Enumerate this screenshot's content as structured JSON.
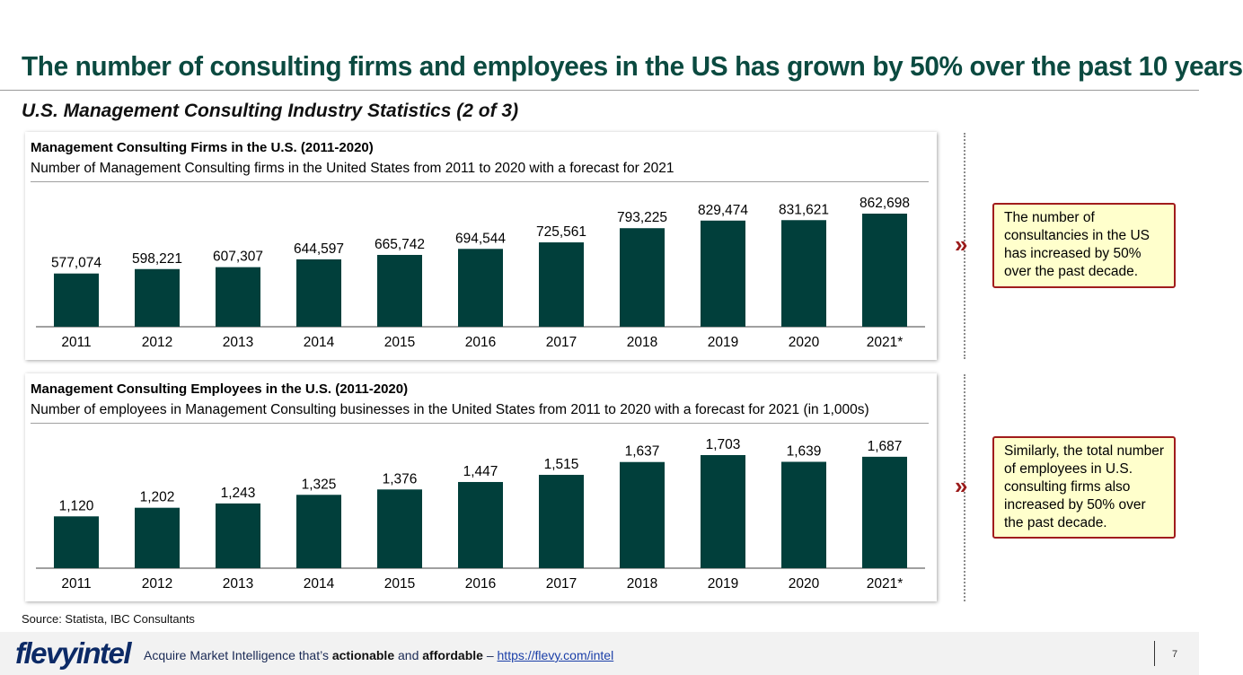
{
  "title": "The number of consulting firms and employees in the US has grown by 50% over the past 10 years",
  "subtitle": "U.S. Management Consulting Industry Statistics (2 of 3)",
  "colors": {
    "bar": "#013f3b",
    "title": "#0b4a40",
    "callout_bg": "#ffffcc",
    "callout_border": "#a11c1c",
    "chevron": "#9b1b1b"
  },
  "chart_data": [
    {
      "type": "bar",
      "title": "Management Consulting Firms in the U.S. (2011-2020)",
      "subtitle": "Number of Management Consulting firms in the United States from 2011 to 2020 with a forecast for 2021",
      "categories": [
        "2011",
        "2012",
        "2013",
        "2014",
        "2015",
        "2016",
        "2017",
        "2018",
        "2019",
        "2020",
        "2021*"
      ],
      "values": [
        577074,
        598221,
        607307,
        644597,
        665742,
        694544,
        725561,
        793225,
        829474,
        831621,
        862698
      ],
      "value_labels": [
        "577,074",
        "598,221",
        "607,307",
        "644,597",
        "665,742",
        "694,544",
        "725,561",
        "793,225",
        "829,474",
        "831,621",
        "862,698"
      ],
      "xlabel": "",
      "ylabel": "",
      "grid": false
    },
    {
      "type": "bar",
      "title": "Management Consulting Employees in the U.S. (2011-2020)",
      "subtitle": "Number of employees in Management Consulting businesses in the United States from 2011 to 2020 with a forecast for 2021 (in 1,000s)",
      "categories": [
        "2011",
        "2012",
        "2013",
        "2014",
        "2015",
        "2016",
        "2017",
        "2018",
        "2019",
        "2020",
        "2021*"
      ],
      "values": [
        1120,
        1202,
        1243,
        1325,
        1376,
        1447,
        1515,
        1637,
        1703,
        1639,
        1687
      ],
      "value_labels": [
        "1,120",
        "1,202",
        "1,243",
        "1,325",
        "1,376",
        "1,447",
        "1,515",
        "1,637",
        "1,703",
        "1,639",
        "1,687"
      ],
      "xlabel": "",
      "ylabel": "",
      "grid": false
    }
  ],
  "callouts": [
    "The number of consultancies in the US has increased by 50% over the past decade.",
    "Similarly, the total number of employees in U.S. consulting firms also increased by 50% over the past decade."
  ],
  "chevron_glyph": "»",
  "source": "Source: Statista, IBC Consultants",
  "footer": {
    "logo_flevy": "flevy",
    "logo_intel": "intel",
    "tagline_pre": "Acquire Market Intelligence that’s ",
    "tagline_b1": "actionable",
    "tagline_mid": " and ",
    "tagline_b2": "affordable",
    "tagline_dash": " – ",
    "link": "https://flevy.com/intel",
    "page_number": "7"
  }
}
